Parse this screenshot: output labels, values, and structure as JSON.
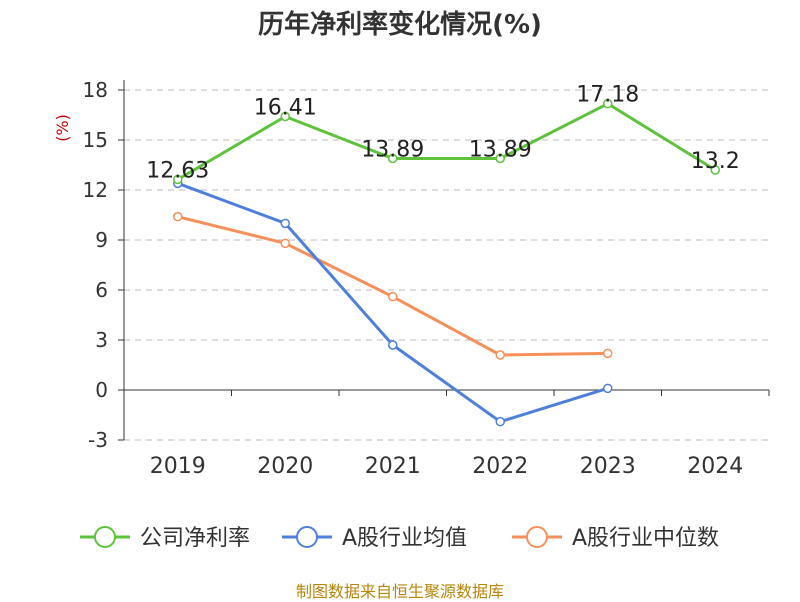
{
  "chart_data": {
    "type": "line",
    "title": "历年净利率变化情况(%)",
    "ylabel": "(%)",
    "ylim": [
      -3,
      18
    ],
    "yticks": [
      -3,
      0,
      3,
      6,
      9,
      12,
      15,
      18
    ],
    "categories": [
      "2019",
      "2020",
      "2021",
      "2022",
      "2023",
      "2024"
    ],
    "grid": true,
    "legend_position": "bottom",
    "series": [
      {
        "name": "公司净利率",
        "color": "#5cc33a",
        "values": [
          12.63,
          16.41,
          13.89,
          13.89,
          17.18,
          13.2
        ],
        "labels": [
          "12.63",
          "16.41",
          "13.89",
          "13.89",
          "17.18",
          "13.2"
        ]
      },
      {
        "name": "A股行业均值",
        "color": "#4f7fdc",
        "values": [
          12.4,
          10.0,
          2.7,
          -1.9,
          0.1,
          null
        ]
      },
      {
        "name": "A股行业中位数",
        "color": "#f6905a",
        "values": [
          10.4,
          8.8,
          5.6,
          2.1,
          2.2,
          null
        ]
      }
    ]
  },
  "source": "制图数据来自恒生聚源数据库"
}
